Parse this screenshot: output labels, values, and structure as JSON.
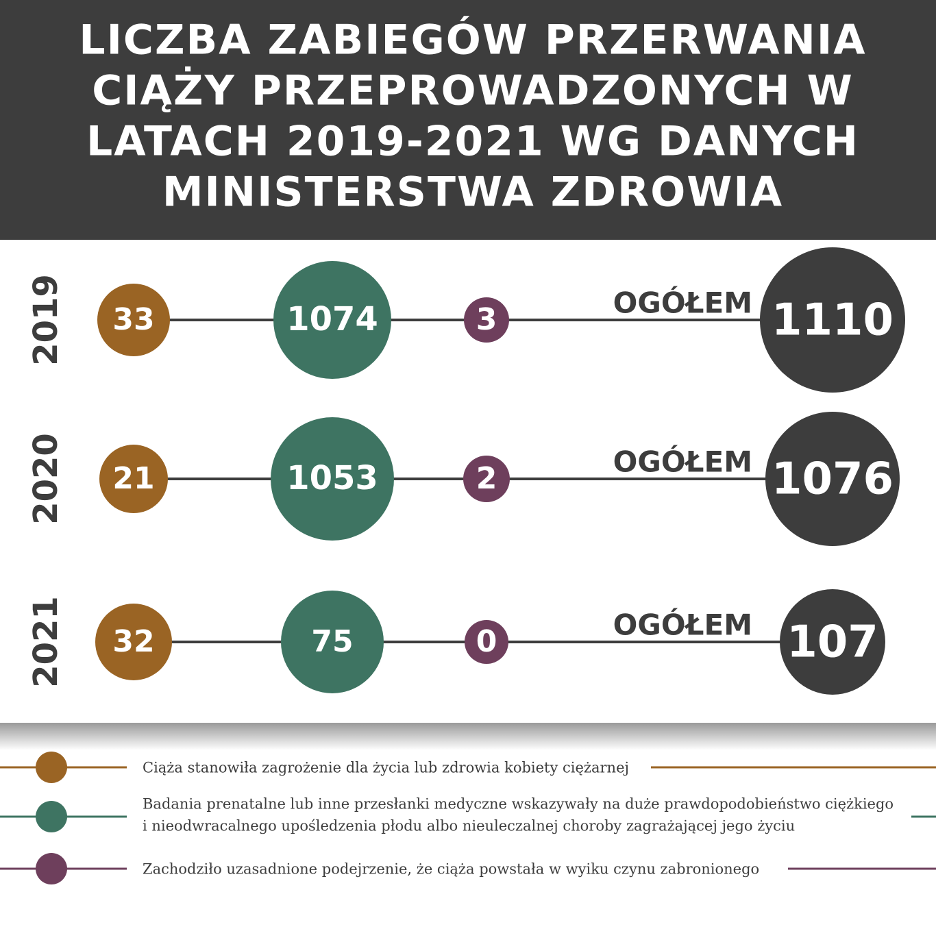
{
  "header": {
    "title_lines": [
      "LICZBA ZABIEGÓW PRZERWANIA",
      "CIĄŻY PRZEPROWADZONYCH W",
      "LATACH 2019-2021 WG DANYCH",
      "MINISTERSTWA ZDROWIA"
    ]
  },
  "rows": [
    {
      "year": "2019",
      "values": [
        33,
        1074,
        3
      ],
      "total_label": "OGÓŁEM",
      "total": 1110
    },
    {
      "year": "2020",
      "values": [
        21,
        1053,
        2
      ],
      "total_label": "OGÓŁEM",
      "total": 1076
    },
    {
      "year": "2021",
      "values": [
        32,
        75,
        0
      ],
      "total_label": "OGÓŁEM",
      "total": 107
    }
  ],
  "total_color": "#3d3d3d",
  "legend": [
    {
      "color": "#9a6424",
      "text_lines": [
        "Ciąża stanowiła zagrożenie dla życia lub zdrowia kobiety ciężarnej"
      ]
    },
    {
      "color": "#3e7462",
      "text_lines": [
        "Badania prenatalne lub inne przesłanki medyczne wskazywały na duże prawdopodobieństwo ciężkiego",
        "i nieodwracalnego upośledzenia płodu albo nieuleczalnej choroby zagrażającej jego życiu"
      ]
    },
    {
      "color": "#6e3f5c",
      "text_lines": [
        "Zachodziło uzasadnione podejrzenie, że ciąża powstała w wyiku czynu zabronionego"
      ]
    }
  ]
}
